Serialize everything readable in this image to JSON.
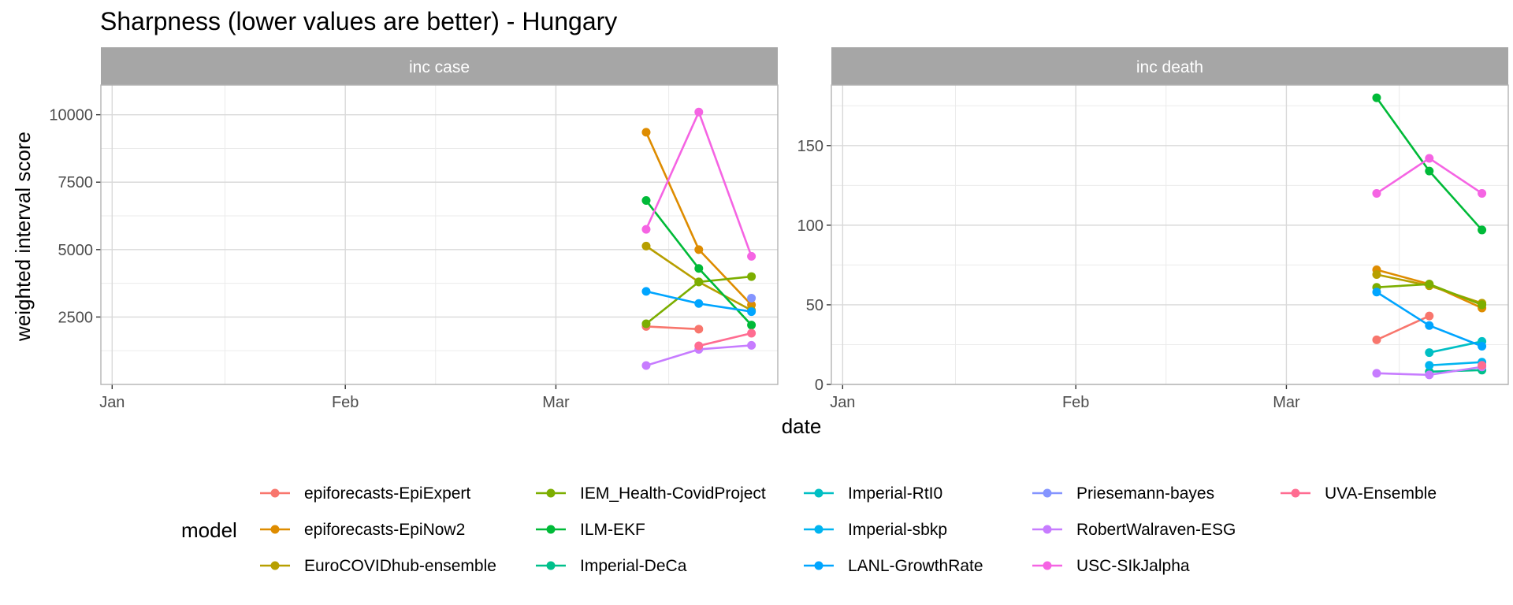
{
  "title": "Sharpness (lower values are better) - Hungary",
  "xlabel": "date",
  "ylabel": "weighted interval score",
  "legend_title": "model",
  "legend_position": "bottom",
  "grid": true,
  "x_ticks": [
    "Jan",
    "Feb",
    "Mar"
  ],
  "dates": [
    "2021-03-13",
    "2021-03-20",
    "2021-03-27"
  ],
  "models": [
    {
      "name": "epiforecasts-EpiExpert",
      "color": "#F8766D"
    },
    {
      "name": "epiforecasts-EpiNow2",
      "color": "#DE8C00"
    },
    {
      "name": "EuroCOVIDhub-ensemble",
      "color": "#B79F00"
    },
    {
      "name": "IEM_Health-CovidProject",
      "color": "#7CAE00"
    },
    {
      "name": "ILM-EKF",
      "color": "#00BA38"
    },
    {
      "name": "Imperial-DeCa",
      "color": "#00C08B"
    },
    {
      "name": "Imperial-RtI0",
      "color": "#00BFC4"
    },
    {
      "name": "Imperial-sbkp",
      "color": "#00B4F0"
    },
    {
      "name": "LANL-GrowthRate",
      "color": "#00A5FF"
    },
    {
      "name": "Priesemann-bayes",
      "color": "#8494FF"
    },
    {
      "name": "RobertWalraven-ESG",
      "color": "#C77CFF"
    },
    {
      "name": "USC-SIkJalpha",
      "color": "#F564E3"
    },
    {
      "name": "UVA-Ensemble",
      "color": "#FF6C91"
    }
  ],
  "chart_data": [
    {
      "type": "line",
      "facet": "inc case",
      "x_ticks": [
        "Jan",
        "Feb",
        "Mar"
      ],
      "ylim": [
        0,
        11100
      ],
      "y_ticks": [
        2500,
        5000,
        7500,
        10000
      ],
      "series": [
        {
          "name": "epiforecasts-EpiExpert",
          "x": [
            "2021-03-13",
            "2021-03-20"
          ],
          "values": [
            2150,
            2050
          ]
        },
        {
          "name": "epiforecasts-EpiNow2",
          "x": [
            "2021-03-13",
            "2021-03-20",
            "2021-03-27"
          ],
          "values": [
            9350,
            5000,
            2950
          ]
        },
        {
          "name": "EuroCOVIDhub-ensemble",
          "x": [
            "2021-03-13",
            "2021-03-20",
            "2021-03-27"
          ],
          "values": [
            5130,
            3800,
            2750
          ]
        },
        {
          "name": "IEM_Health-CovidProject",
          "x": [
            "2021-03-13",
            "2021-03-20",
            "2021-03-27"
          ],
          "values": [
            2250,
            3800,
            4000
          ]
        },
        {
          "name": "ILM-EKF",
          "x": [
            "2021-03-13",
            "2021-03-20",
            "2021-03-27"
          ],
          "values": [
            6820,
            4300,
            2200
          ]
        },
        {
          "name": "LANL-GrowthRate",
          "x": [
            "2021-03-13",
            "2021-03-20",
            "2021-03-27"
          ],
          "values": [
            3450,
            3000,
            2700
          ]
        },
        {
          "name": "Priesemann-bayes",
          "x": [
            "2021-03-27"
          ],
          "values": [
            3200
          ]
        },
        {
          "name": "RobertWalraven-ESG",
          "x": [
            "2021-03-13",
            "2021-03-20",
            "2021-03-27"
          ],
          "values": [
            700,
            1300,
            1450
          ]
        },
        {
          "name": "USC-SIkJalpha",
          "x": [
            "2021-03-13",
            "2021-03-20",
            "2021-03-27"
          ],
          "values": [
            5750,
            10100,
            4750
          ]
        },
        {
          "name": "UVA-Ensemble",
          "x": [
            "2021-03-20",
            "2021-03-27"
          ],
          "values": [
            1430,
            1900
          ]
        }
      ]
    },
    {
      "type": "line",
      "facet": "inc death",
      "x_ticks": [
        "Jan",
        "Feb",
        "Mar"
      ],
      "ylim": [
        0,
        188
      ],
      "y_ticks": [
        0,
        50,
        100,
        150
      ],
      "series": [
        {
          "name": "epiforecasts-EpiExpert",
          "x": [
            "2021-03-13",
            "2021-03-20"
          ],
          "values": [
            28,
            43
          ]
        },
        {
          "name": "epiforecasts-EpiNow2",
          "x": [
            "2021-03-13",
            "2021-03-20",
            "2021-03-27"
          ],
          "values": [
            72,
            63,
            48
          ]
        },
        {
          "name": "EuroCOVIDhub-ensemble",
          "x": [
            "2021-03-13",
            "2021-03-20",
            "2021-03-27"
          ],
          "values": [
            69,
            62,
            51
          ]
        },
        {
          "name": "IEM_Health-CovidProject",
          "x": [
            "2021-03-13",
            "2021-03-20",
            "2021-03-27"
          ],
          "values": [
            61,
            63,
            50
          ]
        },
        {
          "name": "ILM-EKF",
          "x": [
            "2021-03-13",
            "2021-03-20",
            "2021-03-27"
          ],
          "values": [
            180,
            134,
            97
          ]
        },
        {
          "name": "Imperial-DeCa",
          "x": [
            "2021-03-20",
            "2021-03-27"
          ],
          "values": [
            8,
            9
          ]
        },
        {
          "name": "Imperial-RtI0",
          "x": [
            "2021-03-20",
            "2021-03-27"
          ],
          "values": [
            20,
            27
          ]
        },
        {
          "name": "Imperial-sbkp",
          "x": [
            "2021-03-20",
            "2021-03-27"
          ],
          "values": [
            12,
            14
          ]
        },
        {
          "name": "LANL-GrowthRate",
          "x": [
            "2021-03-13",
            "2021-03-20",
            "2021-03-27"
          ],
          "values": [
            58,
            37,
            24
          ]
        },
        {
          "name": "RobertWalraven-ESG",
          "x": [
            "2021-03-13",
            "2021-03-20",
            "2021-03-27"
          ],
          "values": [
            7,
            6,
            11
          ]
        },
        {
          "name": "USC-SIkJalpha",
          "x": [
            "2021-03-13",
            "2021-03-20",
            "2021-03-27"
          ],
          "values": [
            120,
            142,
            120
          ]
        },
        {
          "name": "UVA-Ensemble",
          "x": [
            "2021-03-27"
          ],
          "values": [
            12
          ]
        }
      ]
    }
  ]
}
